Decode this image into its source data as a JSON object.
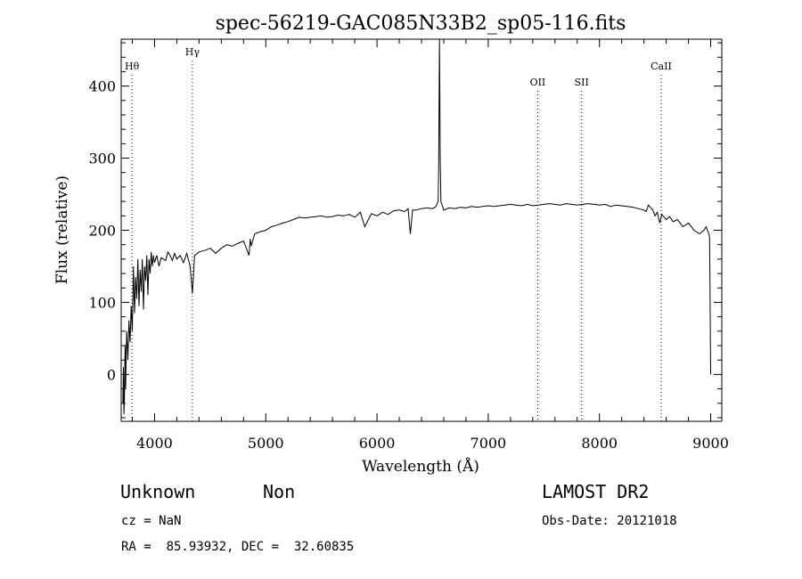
{
  "chart_data": {
    "type": "line",
    "title": "spec-56219-GAC085N33B2_sp05-116.fits",
    "xlabel": "Wavelength (Å)",
    "ylabel": "Flux (relative)",
    "xlim": [
      3700,
      9100
    ],
    "ylim": [
      -65,
      465
    ],
    "xticks": [
      4000,
      5000,
      6000,
      7000,
      8000,
      9000
    ],
    "yticks": [
      0,
      100,
      200,
      300,
      400
    ],
    "grid": false,
    "spectral_lines": [
      {
        "name": "Hθ",
        "wavelength": 3797
      },
      {
        "name": "Hγ",
        "wavelength": 4340
      },
      {
        "name": "OII",
        "wavelength": 7445
      },
      {
        "name": "SII",
        "wavelength": 7840
      },
      {
        "name": "CaII",
        "wavelength": 8555
      }
    ],
    "series": [
      {
        "x": [
          3715,
          3720,
          3725,
          3730,
          3735,
          3740,
          3745,
          3750,
          3760,
          3770,
          3780,
          3790,
          3800,
          3810,
          3820,
          3830,
          3840,
          3850,
          3860,
          3870,
          3880,
          3890,
          3900,
          3910,
          3920,
          3930,
          3940,
          3950,
          3960,
          3970,
          3980,
          3990,
          4000,
          4020,
          4040,
          4060,
          4080,
          4100,
          4120,
          4140,
          4160,
          4180,
          4200,
          4230,
          4260,
          4290,
          4320,
          4340,
          4360,
          4400,
          4450,
          4500,
          4550,
          4600,
          4650,
          4700,
          4750,
          4800,
          4850,
          4860,
          4870,
          4900,
          4950,
          5000,
          5050,
          5100,
          5150,
          5200,
          5250,
          5300,
          5350,
          5400,
          5450,
          5500,
          5550,
          5600,
          5650,
          5700,
          5750,
          5800,
          5850,
          5890,
          5950,
          6000,
          6050,
          6100,
          6150,
          6200,
          6250,
          6280,
          6300,
          6320,
          6350,
          6400,
          6450,
          6500,
          6530,
          6550,
          6555,
          6562,
          6568,
          6575,
          6600,
          6650,
          6700,
          6750,
          6800,
          6850,
          6900,
          6950,
          7000,
          7050,
          7100,
          7150,
          7200,
          7250,
          7300,
          7350,
          7400,
          7450,
          7500,
          7550,
          7600,
          7650,
          7700,
          7750,
          7800,
          7850,
          7900,
          7950,
          8000,
          8050,
          8100,
          8150,
          8200,
          8250,
          8300,
          8350,
          8400,
          8420,
          8440,
          8480,
          8500,
          8520,
          8542,
          8560,
          8600,
          8630,
          8662,
          8700,
          8750,
          8800,
          8850,
          8900,
          8940,
          8960,
          8975,
          8985,
          8990,
          8995,
          9000
        ],
        "y": [
          -40,
          10,
          -55,
          -30,
          40,
          -20,
          30,
          60,
          20,
          75,
          45,
          95,
          60,
          150,
          85,
          135,
          105,
          160,
          95,
          145,
          115,
          160,
          90,
          150,
          130,
          165,
          110,
          160,
          140,
          170,
          150,
          165,
          155,
          165,
          150,
          162,
          160,
          158,
          170,
          165,
          158,
          168,
          160,
          165,
          155,
          168,
          150,
          112,
          165,
          170,
          172,
          175,
          168,
          175,
          180,
          178,
          182,
          185,
          165,
          188,
          178,
          195,
          198,
          200,
          205,
          207,
          210,
          212,
          215,
          218,
          217,
          218,
          219,
          220,
          218,
          219,
          221,
          220,
          222,
          218,
          225,
          205,
          223,
          220,
          225,
          222,
          227,
          228,
          226,
          230,
          195,
          228,
          228,
          230,
          231,
          230,
          233,
          240,
          290,
          470,
          300,
          240,
          228,
          231,
          230,
          232,
          231,
          233,
          232,
          233,
          234,
          233,
          234,
          235,
          236,
          235,
          234,
          236,
          234,
          235,
          236,
          237,
          236,
          235,
          237,
          236,
          235,
          236,
          237,
          236,
          235,
          236,
          233,
          235,
          234,
          233,
          232,
          230,
          228,
          226,
          235,
          228,
          220,
          225,
          210,
          222,
          215,
          219,
          212,
          215,
          205,
          210,
          200,
          195,
          200,
          205,
          198,
          195,
          190,
          100,
          0
        ]
      }
    ]
  },
  "info": {
    "class_label": "Unknown",
    "subclass_label": "Non",
    "survey_label": "LAMOST DR2",
    "cz_text": "cz = NaN",
    "obs_date_text": "Obs-Date: 20121018",
    "coords_text": "RA =  85.93932, DEC =  32.60835"
  }
}
